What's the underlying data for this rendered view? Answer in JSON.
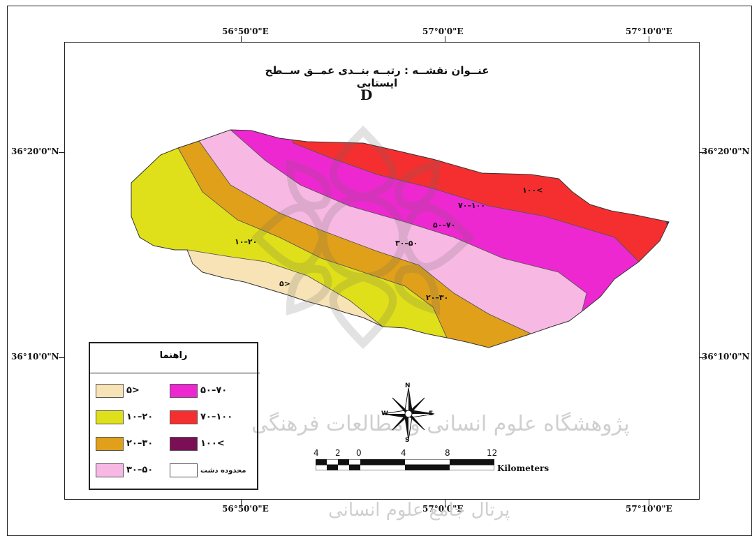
{
  "map": {
    "title": "عنــوان نقشــه : رتبــه بنــدی عمــق ســطح ایستابی",
    "panel_letter": "D",
    "colors": {
      "lt10": "#f7e3b5",
      "r10_20": "#dfe01a",
      "r20_30": "#e0a01a",
      "r30_50": "#f7b8e3",
      "r50_70": "#ee28d0",
      "r70_100": "#f52f2f",
      "gt100": "#7a0f55"
    }
  },
  "coords": {
    "top": [
      "56°50'0\"E",
      "57°0'0\"E",
      "57°10'0\"E"
    ],
    "bottom": [
      "56°50'0\"E",
      "57°0'0\"E",
      "57°10'0\"E"
    ],
    "left": [
      "36°20'0\"N",
      "36°10'0\"N"
    ],
    "right": [
      "36°20'0\"N",
      "36°10'0\"N"
    ]
  },
  "zone_labels": {
    "lt10": "۵>",
    "r10_20": "۱۰–۲۰",
    "r20_30": "۲۰–۳۰",
    "r30_50": "۳۰–۵۰",
    "r50_70": "۵۰–۷۰",
    "r70_100": "۷۰–۱۰۰",
    "gt100": "۱۰۰<"
  },
  "legend": {
    "title": "راهنما",
    "items": [
      {
        "label": "۵>",
        "color": "#f7e3b5"
      },
      {
        "label": "۱۰–۲۰",
        "color": "#dfe01a"
      },
      {
        "label": "۲۰–۳۰",
        "color": "#e0a01a"
      },
      {
        "label": "۳۰–۵۰",
        "color": "#f7b8e3"
      },
      {
        "label": "۵۰–۷۰",
        "color": "#ee28d0"
      },
      {
        "label": "۷۰–۱۰۰",
        "color": "#f52f2f"
      },
      {
        "label": "۱۰۰<",
        "color": "#7a0f55"
      },
      {
        "label": "محدوده دشت",
        "color": "#ffffff"
      }
    ]
  },
  "scale_bar": {
    "ticks": [
      "4",
      "2",
      "0",
      "4",
      "8",
      "12"
    ],
    "unit": "Kilometers"
  },
  "north_arrow": {
    "n": "N",
    "s": "S",
    "e": "E",
    "w": "W"
  },
  "watermark": {
    "line1": "پژوهشگاه علوم انسانی و مطالعات فرهنگی",
    "line2": "پرتال جامع علوم انسانی"
  }
}
